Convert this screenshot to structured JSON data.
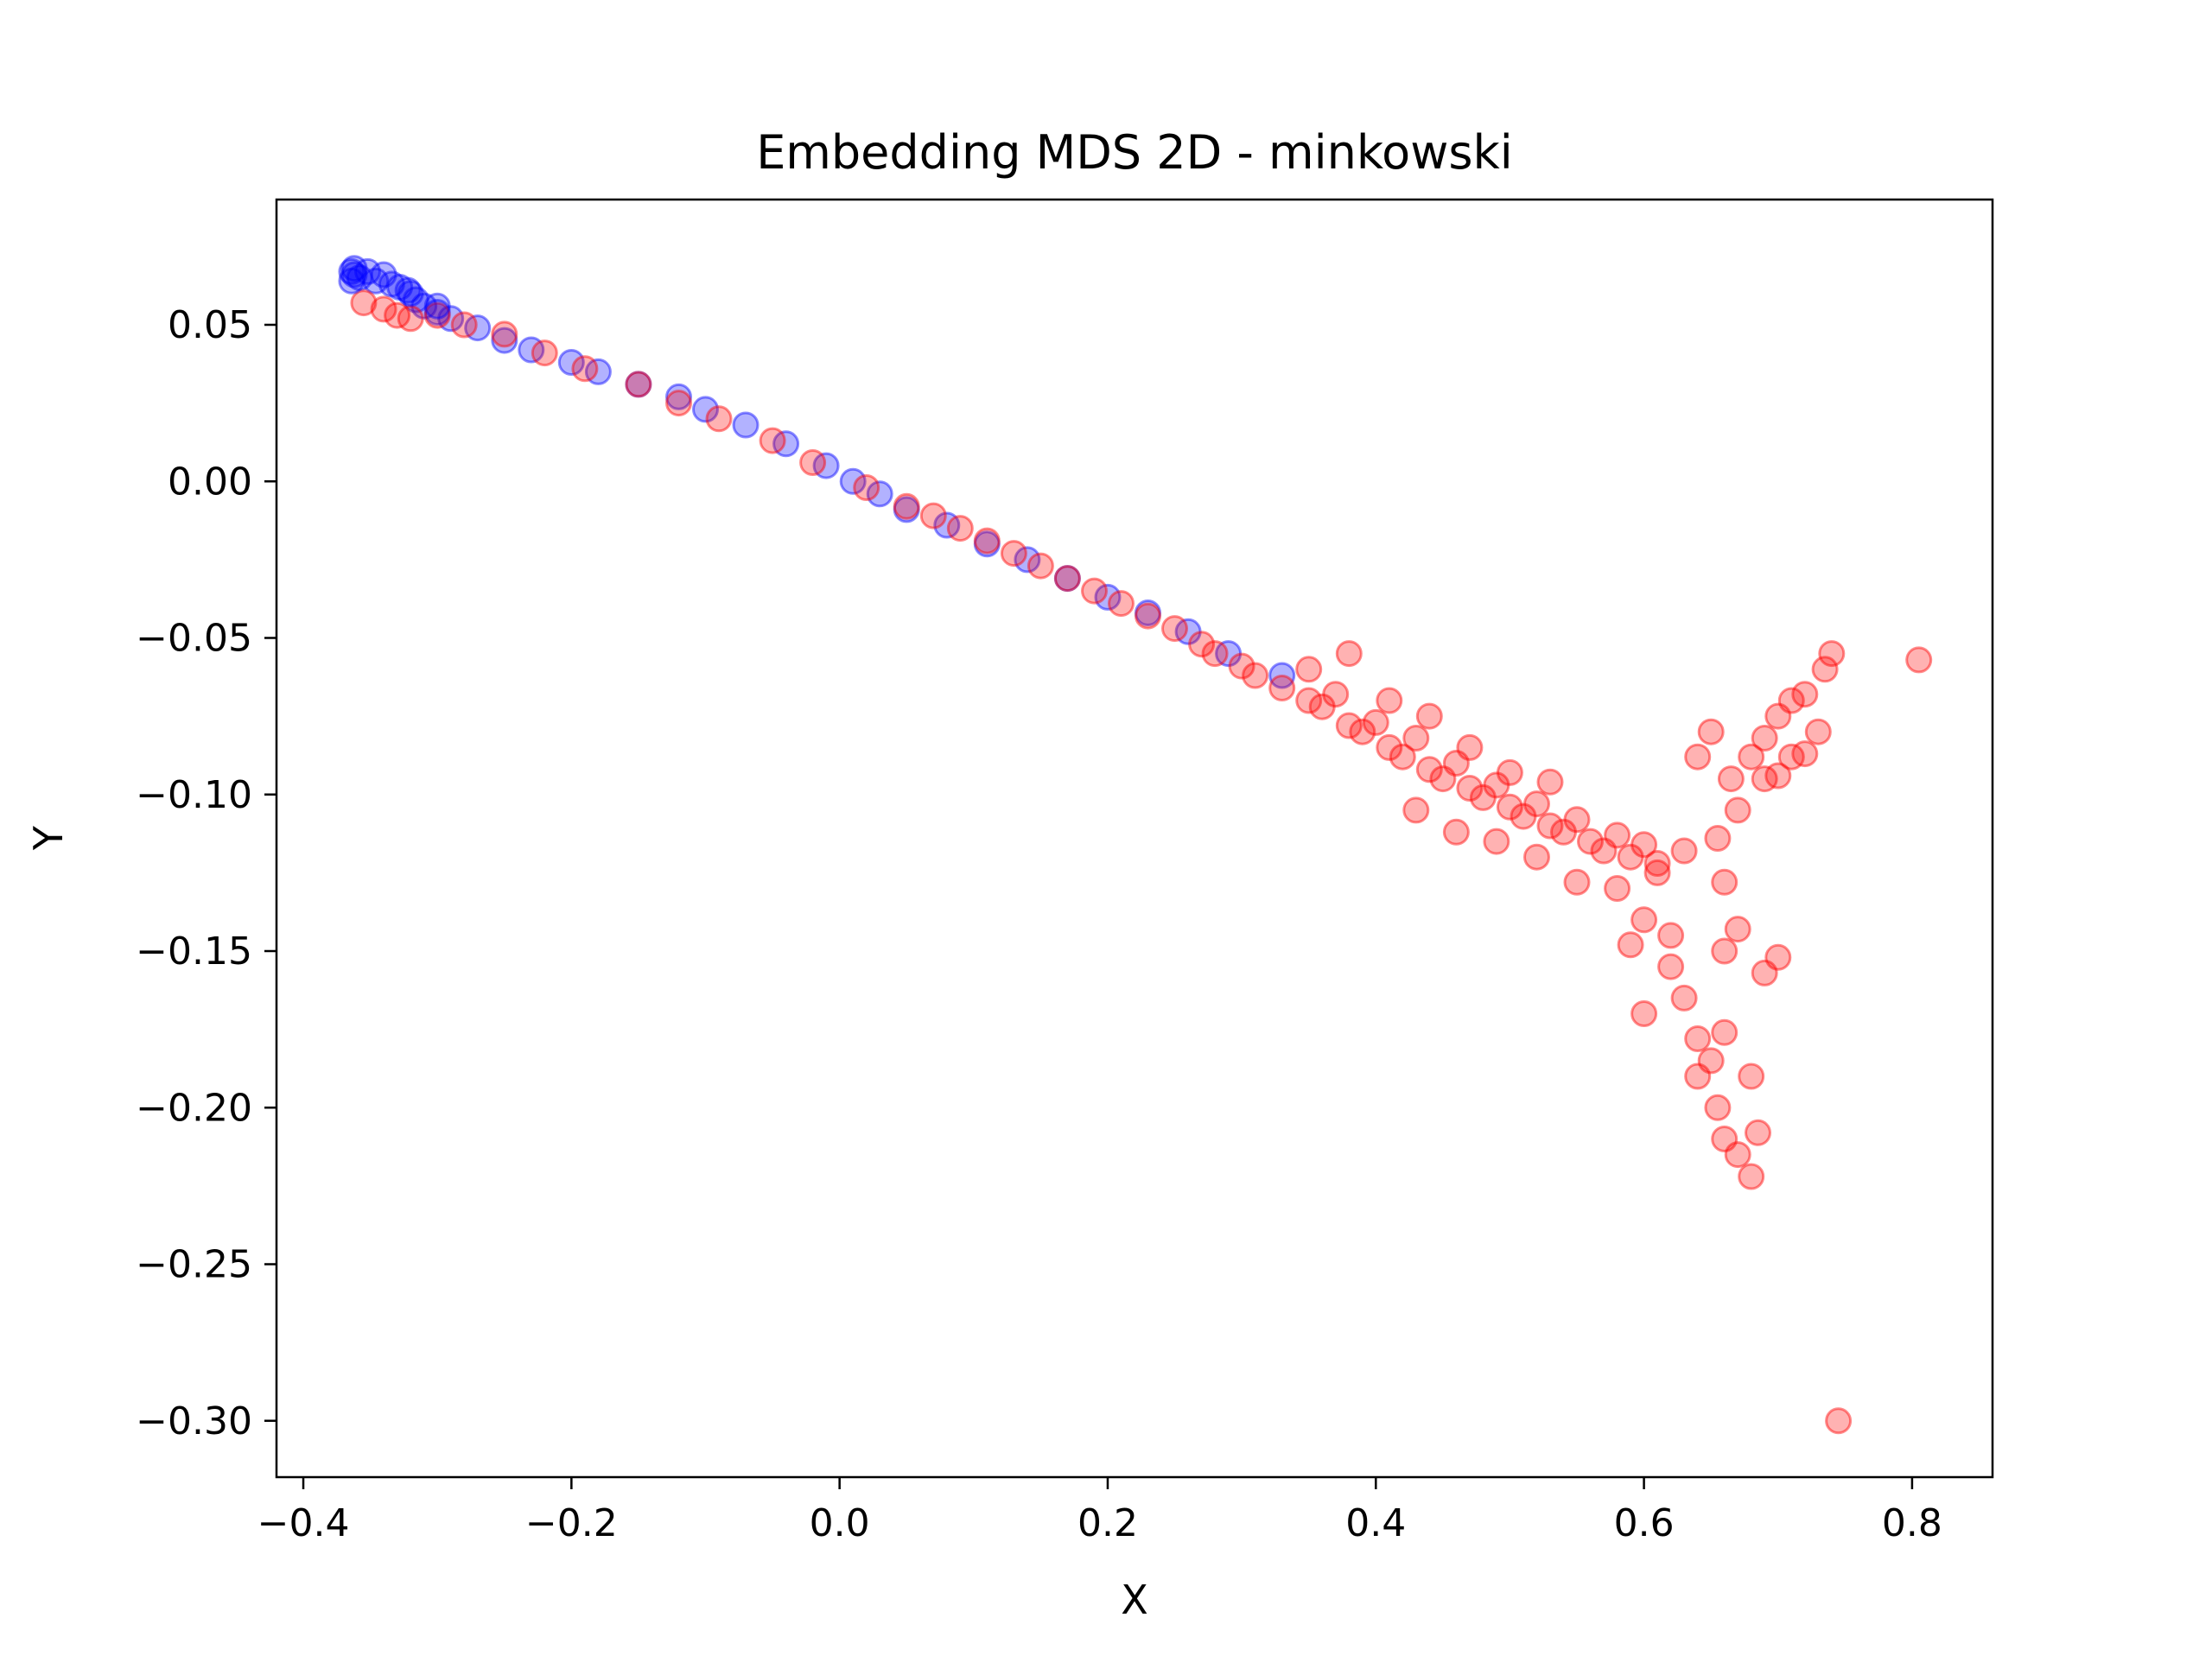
{
  "chart_data": {
    "type": "scatter",
    "title": "Embedding MDS 2D - minkowski",
    "xlabel": "X",
    "ylabel": "Y",
    "xlim": [
      -0.42,
      0.86
    ],
    "ylim": [
      -0.318,
      0.09
    ],
    "xticks": [
      -0.4,
      -0.2,
      0.0,
      0.2,
      0.4,
      0.6,
      0.8
    ],
    "xtick_labels": [
      "−0.4",
      "−0.2",
      "0.0",
      "0.2",
      "0.4",
      "0.6",
      "0.8"
    ],
    "yticks": [
      0.05,
      0.0,
      -0.05,
      -0.1,
      -0.15,
      -0.2,
      -0.25,
      -0.3
    ],
    "ytick_labels": [
      "0.05",
      "0.00",
      "−0.05",
      "−0.10",
      "−0.15",
      "−0.20",
      "−0.25",
      "−0.30"
    ],
    "grid": false,
    "marker_alpha": 0.3,
    "series": [
      {
        "color": "#0000ff",
        "points": [
          [
            -0.362,
            0.068
          ],
          [
            -0.358,
            0.065
          ],
          [
            -0.352,
            0.067
          ],
          [
            -0.346,
            0.064
          ],
          [
            -0.34,
            0.066
          ],
          [
            -0.334,
            0.063
          ],
          [
            -0.328,
            0.062
          ],
          [
            -0.322,
            0.061
          ],
          [
            -0.316,
            0.058
          ],
          [
            -0.31,
            0.056
          ],
          [
            -0.3,
            0.054
          ],
          [
            -0.29,
            0.052
          ],
          [
            -0.27,
            0.049
          ],
          [
            -0.25,
            0.045
          ],
          [
            -0.23,
            0.042
          ],
          [
            -0.2,
            0.038
          ],
          [
            -0.18,
            0.035
          ],
          [
            -0.15,
            0.031
          ],
          [
            -0.12,
            0.027
          ],
          [
            -0.1,
            0.023
          ],
          [
            -0.07,
            0.018
          ],
          [
            -0.04,
            0.012
          ],
          [
            -0.01,
            0.005
          ],
          [
            0.01,
            0.0
          ],
          [
            0.03,
            -0.004
          ],
          [
            0.05,
            -0.009
          ],
          [
            0.08,
            -0.014
          ],
          [
            0.11,
            -0.02
          ],
          [
            0.14,
            -0.025
          ],
          [
            0.17,
            -0.031
          ],
          [
            0.2,
            -0.037
          ],
          [
            0.23,
            -0.042
          ],
          [
            0.26,
            -0.048
          ],
          [
            0.29,
            -0.055
          ],
          [
            0.33,
            -0.062
          ]
        ]
      },
      {
        "color": "#ff0000",
        "points": [
          [
            -0.355,
            0.057
          ],
          [
            -0.34,
            0.055
          ],
          [
            -0.33,
            0.053
          ],
          [
            -0.32,
            0.052
          ],
          [
            -0.3,
            0.053
          ],
          [
            -0.28,
            0.05
          ],
          [
            -0.25,
            0.047
          ],
          [
            -0.22,
            0.041
          ],
          [
            -0.19,
            0.036
          ],
          [
            -0.15,
            0.031
          ],
          [
            -0.12,
            0.025
          ],
          [
            -0.09,
            0.02
          ],
          [
            -0.05,
            0.013
          ],
          [
            -0.02,
            0.006
          ],
          [
            0.02,
            -0.002
          ],
          [
            0.05,
            -0.008
          ],
          [
            0.07,
            -0.011
          ],
          [
            0.09,
            -0.015
          ],
          [
            0.11,
            -0.019
          ],
          [
            0.13,
            -0.023
          ],
          [
            0.15,
            -0.027
          ],
          [
            0.17,
            -0.031
          ],
          [
            0.19,
            -0.035
          ],
          [
            0.21,
            -0.039
          ],
          [
            0.23,
            -0.043
          ],
          [
            0.25,
            -0.047
          ],
          [
            0.27,
            -0.052
          ],
          [
            0.28,
            -0.055
          ],
          [
            0.3,
            -0.059
          ],
          [
            0.31,
            -0.062
          ],
          [
            0.33,
            -0.066
          ],
          [
            0.35,
            -0.07
          ],
          [
            0.36,
            -0.072
          ],
          [
            0.37,
            -0.068
          ],
          [
            0.38,
            -0.078
          ],
          [
            0.39,
            -0.08
          ],
          [
            0.4,
            -0.077
          ],
          [
            0.41,
            -0.085
          ],
          [
            0.42,
            -0.088
          ],
          [
            0.43,
            -0.082
          ],
          [
            0.44,
            -0.092
          ],
          [
            0.45,
            -0.095
          ],
          [
            0.46,
            -0.09
          ],
          [
            0.47,
            -0.098
          ],
          [
            0.48,
            -0.101
          ],
          [
            0.49,
            -0.097
          ],
          [
            0.5,
            -0.104
          ],
          [
            0.51,
            -0.107
          ],
          [
            0.52,
            -0.103
          ],
          [
            0.53,
            -0.11
          ],
          [
            0.54,
            -0.112
          ],
          [
            0.55,
            -0.108
          ],
          [
            0.56,
            -0.115
          ],
          [
            0.57,
            -0.118
          ],
          [
            0.58,
            -0.113
          ],
          [
            0.59,
            -0.12
          ],
          [
            0.6,
            -0.116
          ],
          [
            0.61,
            -0.122
          ],
          [
            0.35,
            -0.06
          ],
          [
            0.38,
            -0.055
          ],
          [
            0.41,
            -0.07
          ],
          [
            0.44,
            -0.075
          ],
          [
            0.47,
            -0.085
          ],
          [
            0.5,
            -0.093
          ],
          [
            0.53,
            -0.096
          ],
          [
            0.43,
            -0.105
          ],
          [
            0.46,
            -0.112
          ],
          [
            0.49,
            -0.115
          ],
          [
            0.52,
            -0.12
          ],
          [
            0.55,
            -0.128
          ],
          [
            0.58,
            -0.13
          ],
          [
            0.61,
            -0.125
          ],
          [
            0.6,
            -0.14
          ],
          [
            0.59,
            -0.148
          ],
          [
            0.62,
            -0.145
          ],
          [
            0.63,
            -0.118
          ],
          [
            0.62,
            -0.155
          ],
          [
            0.6,
            -0.17
          ],
          [
            0.63,
            -0.165
          ],
          [
            0.64,
            -0.178
          ],
          [
            0.65,
            -0.185
          ],
          [
            0.64,
            -0.19
          ],
          [
            0.66,
            -0.176
          ],
          [
            0.655,
            -0.2
          ],
          [
            0.66,
            -0.21
          ],
          [
            0.67,
            -0.215
          ],
          [
            0.68,
            -0.222
          ],
          [
            0.685,
            -0.208
          ],
          [
            0.68,
            -0.19
          ],
          [
            0.67,
            -0.143
          ],
          [
            0.66,
            -0.15
          ],
          [
            0.69,
            -0.157
          ],
          [
            0.7,
            -0.152
          ],
          [
            0.66,
            -0.128
          ],
          [
            0.655,
            -0.114
          ],
          [
            0.67,
            -0.105
          ],
          [
            0.665,
            -0.095
          ],
          [
            0.68,
            -0.088
          ],
          [
            0.69,
            -0.082
          ],
          [
            0.7,
            -0.075
          ],
          [
            0.71,
            -0.07
          ],
          [
            0.72,
            -0.068
          ],
          [
            0.71,
            -0.088
          ],
          [
            0.72,
            -0.087
          ],
          [
            0.73,
            -0.08
          ],
          [
            0.735,
            -0.06
          ],
          [
            0.74,
            -0.055
          ],
          [
            0.69,
            -0.095
          ],
          [
            0.7,
            -0.094
          ],
          [
            0.65,
            -0.08
          ],
          [
            0.64,
            -0.088
          ],
          [
            0.805,
            -0.057
          ],
          [
            0.745,
            -0.3
          ]
        ]
      },
      {
        "color": "#0000ff",
        "points": [
          [
            -0.364,
            0.067
          ],
          [
            -0.364,
            0.064
          ],
          [
            -0.362,
            0.066
          ],
          [
            -0.32,
            0.06
          ],
          [
            -0.3,
            0.056
          ]
        ]
      }
    ]
  }
}
